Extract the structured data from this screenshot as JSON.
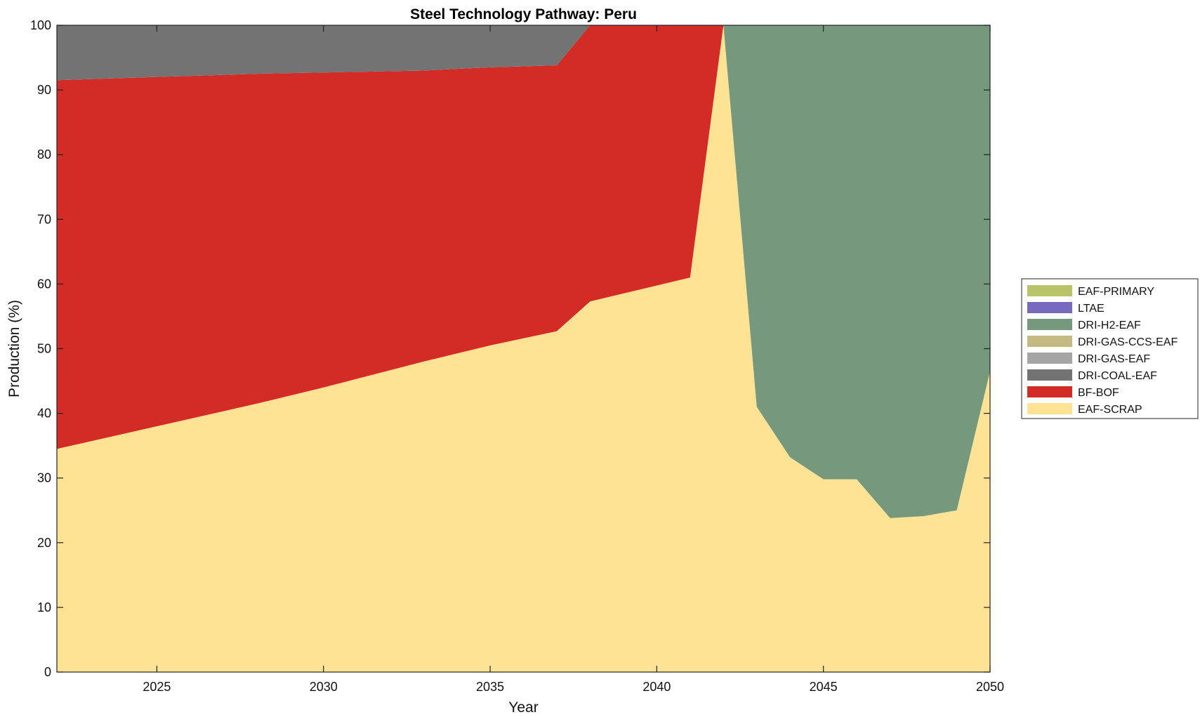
{
  "chart_data": {
    "type": "area",
    "title": "Steel Technology Pathway: Peru",
    "xlabel": "Year",
    "ylabel": "Production (%)",
    "xlim": [
      2022,
      2050
    ],
    "ylim": [
      0,
      100
    ],
    "xticks": [
      2025,
      2030,
      2035,
      2040,
      2045,
      2050
    ],
    "yticks": [
      0,
      10,
      20,
      30,
      40,
      50,
      60,
      70,
      80,
      90,
      100
    ],
    "grid": false,
    "stacked": true,
    "legend_position": "right",
    "x": [
      2022,
      2025,
      2028,
      2030,
      2033,
      2035,
      2037,
      2038,
      2041,
      2042,
      2043,
      2044,
      2045,
      2046,
      2047,
      2048,
      2049,
      2050
    ],
    "series": [
      {
        "name": "EAF-SCRAP",
        "color": "#FEE394",
        "values": [
          34.5,
          38,
          41.5,
          44,
          48,
          50.5,
          52.7,
          57.3,
          61,
          100,
          41,
          33.2,
          29.8,
          29.8,
          23.8,
          24.1,
          25,
          46.5
        ]
      },
      {
        "name": "BF-BOF",
        "color": "#D32B25",
        "values": [
          57,
          54,
          51,
          48.7,
          45,
          43,
          41.1,
          42.7,
          39,
          0,
          0,
          0,
          0,
          0,
          0,
          0,
          0,
          0
        ]
      },
      {
        "name": "DRI-COAL-EAF",
        "color": "#737373",
        "values": [
          8.5,
          8,
          7.5,
          7.3,
          7,
          6.5,
          6.2,
          0,
          0,
          0,
          0,
          0,
          0,
          0,
          0,
          0,
          0,
          0
        ]
      },
      {
        "name": "DRI-GAS-EAF",
        "color": "#A5A5A5",
        "values": [
          0,
          0,
          0,
          0,
          0,
          0,
          0,
          0,
          0,
          0,
          0,
          0,
          0,
          0,
          0,
          0,
          0,
          0
        ]
      },
      {
        "name": "DRI-GAS-CCS-EAF",
        "color": "#C4BA84",
        "values": [
          0,
          0,
          0,
          0,
          0,
          0,
          0,
          0,
          0,
          0,
          0,
          0,
          0,
          0,
          0,
          0,
          0,
          0
        ]
      },
      {
        "name": "DRI-H2-EAF",
        "color": "#76997E",
        "values": [
          0,
          0,
          0,
          0,
          0,
          0,
          0,
          0,
          0,
          0,
          59,
          66.8,
          70.2,
          70.2,
          76.2,
          75.9,
          75,
          53.5
        ]
      },
      {
        "name": "LTAE",
        "color": "#7769BE",
        "values": [
          0,
          0,
          0,
          0,
          0,
          0,
          0,
          0,
          0,
          0,
          0,
          0,
          0,
          0,
          0,
          0,
          0,
          0
        ]
      },
      {
        "name": "EAF-PRIMARY",
        "color": "#B9C46A",
        "values": [
          0,
          0,
          0,
          0,
          0,
          0,
          0,
          0,
          0,
          0,
          0,
          0,
          0,
          0,
          0,
          0,
          0,
          0
        ]
      }
    ],
    "legend_order": [
      "EAF-PRIMARY",
      "LTAE",
      "DRI-H2-EAF",
      "DRI-GAS-CCS-EAF",
      "DRI-GAS-EAF",
      "DRI-COAL-EAF",
      "BF-BOF",
      "EAF-SCRAP"
    ]
  }
}
